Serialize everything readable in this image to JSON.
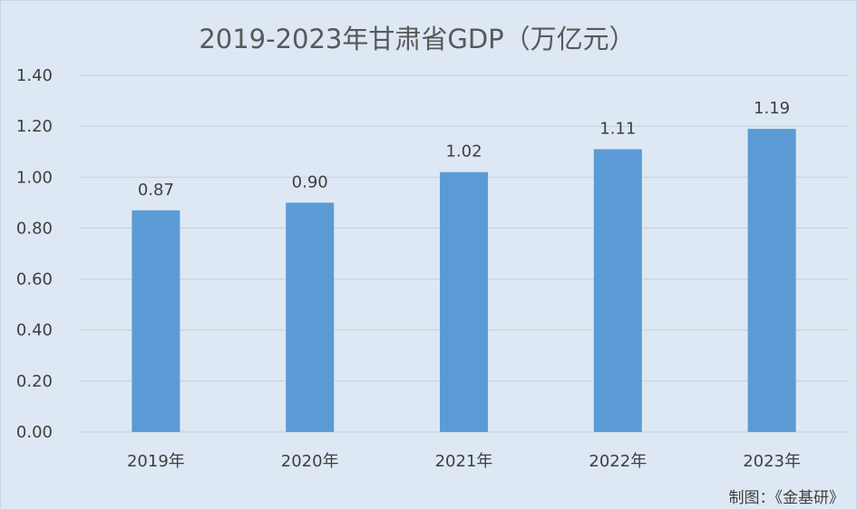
{
  "chart_data": {
    "type": "bar",
    "title": "2019-2023年甘肃省GDP（万亿元）",
    "categories": [
      "2019年",
      "2020年",
      "2021年",
      "2022年",
      "2023年"
    ],
    "series": [
      {
        "values": [
          0.87,
          0.9,
          1.02,
          1.11,
          1.19
        ]
      }
    ],
    "data_labels": [
      "0.87",
      "0.90",
      "1.02",
      "1.11",
      "1.19"
    ],
    "ylim": [
      0,
      1.4
    ],
    "y_ticks": [
      "0.00",
      "0.20",
      "0.40",
      "0.60",
      "0.80",
      "1.00",
      "1.20",
      "1.40"
    ],
    "xlabel": "",
    "ylabel": "",
    "grid": true,
    "legend": "none",
    "bar_color": "#5b9bd5",
    "background_color": "#dde8f4"
  },
  "source_note": "制图：《金基研》"
}
